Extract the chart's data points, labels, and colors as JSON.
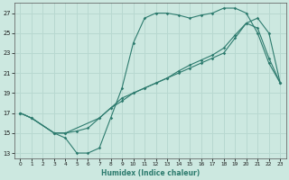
{
  "xlabel": "Humidex (Indice chaleur)",
  "xlim": [
    -0.5,
    23.5
  ],
  "ylim": [
    12.5,
    28.0
  ],
  "yticks": [
    13,
    15,
    17,
    19,
    21,
    23,
    25,
    27
  ],
  "xticks": [
    0,
    1,
    2,
    3,
    4,
    5,
    6,
    7,
    8,
    9,
    10,
    11,
    12,
    13,
    14,
    15,
    16,
    17,
    18,
    19,
    20,
    21,
    22,
    23
  ],
  "line_color": "#2D7B6E",
  "bg_color": "#CCE8E0",
  "grid_color": "#B8D8D0",
  "line1_x": [
    0,
    1,
    3,
    4,
    5,
    6,
    7,
    8,
    9,
    10,
    11,
    12,
    13,
    14,
    15,
    16,
    17,
    18,
    19,
    20,
    21,
    22,
    23
  ],
  "line1_y": [
    17.0,
    16.5,
    15.0,
    14.5,
    13.0,
    13.0,
    13.5,
    16.5,
    19.5,
    24.0,
    26.5,
    27.0,
    27.0,
    26.8,
    26.5,
    26.8,
    27.0,
    27.5,
    27.5,
    27.0,
    25.0,
    22.0,
    20.0
  ],
  "line2_x": [
    0,
    1,
    3,
    4,
    5,
    6,
    7,
    8,
    9,
    10,
    11,
    12,
    13,
    14,
    15,
    16,
    17,
    18,
    19,
    20,
    21,
    22,
    23
  ],
  "line2_y": [
    17.0,
    16.5,
    15.0,
    15.0,
    15.2,
    15.5,
    16.5,
    17.5,
    18.2,
    19.0,
    19.5,
    20.0,
    20.5,
    21.0,
    21.5,
    22.0,
    22.5,
    23.0,
    24.5,
    26.0,
    26.5,
    25.0,
    20.0
  ],
  "line3_x": [
    0,
    1,
    3,
    4,
    7,
    8,
    9,
    10,
    11,
    12,
    13,
    14,
    15,
    16,
    17,
    18,
    19,
    20,
    21,
    22,
    23
  ],
  "line3_y": [
    17.0,
    16.5,
    15.0,
    15.0,
    16.5,
    17.5,
    18.5,
    19.0,
    19.5,
    20.0,
    20.5,
    21.2,
    21.8,
    22.3,
    22.8,
    23.5,
    24.8,
    26.0,
    25.5,
    22.5,
    20.0
  ]
}
